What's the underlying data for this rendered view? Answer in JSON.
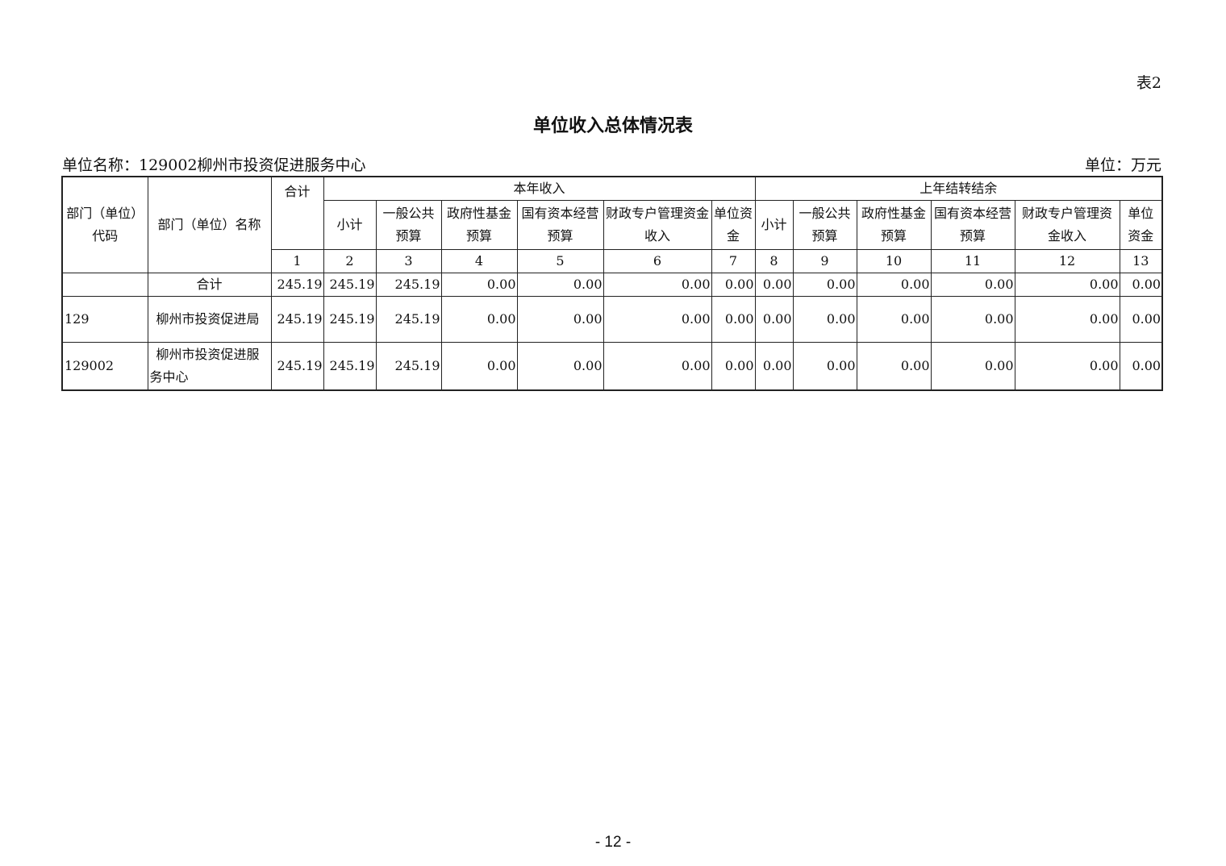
{
  "tag": "表2",
  "title": "单位收入总体情况表",
  "unit_name": "单位名称：129002柳州市投资促进服务中心",
  "unit": "单位：万元",
  "headers": {
    "code": "部门（单位）代码",
    "name": "部门（单位）名称",
    "total": "合计",
    "group1": "本年收入",
    "group2": "上年结转结余",
    "sub": [
      "小计",
      "一般公共预算",
      "政府性基金预算",
      "国有资本经营预算",
      "财政专户管理资金收入",
      "单位资金"
    ],
    "nums": [
      "1",
      "2",
      "3",
      "4",
      "5",
      "6",
      "7",
      "8",
      "9",
      "10",
      "11",
      "12",
      "13"
    ]
  },
  "rows": [
    {
      "code": "",
      "name": "合计",
      "values": [
        "245.19",
        "245.19",
        "245.19",
        "0.00",
        "0.00",
        "0.00",
        "0.00",
        "0.00",
        "0.00",
        "0.00",
        "0.00",
        "0.00",
        "0.00"
      ]
    },
    {
      "code": "129",
      "name": "柳州市投资促进局",
      "values": [
        "245.19",
        "245.19",
        "245.19",
        "0.00",
        "0.00",
        "0.00",
        "0.00",
        "0.00",
        "0.00",
        "0.00",
        "0.00",
        "0.00",
        "0.00"
      ]
    },
    {
      "code": "129002",
      "name": "柳州市投资促进服务中心",
      "values": [
        "245.19",
        "245.19",
        "245.19",
        "0.00",
        "0.00",
        "0.00",
        "0.00",
        "0.00",
        "0.00",
        "0.00",
        "0.00",
        "0.00",
        "0.00"
      ]
    }
  ],
  "page_number": "- 12 -"
}
